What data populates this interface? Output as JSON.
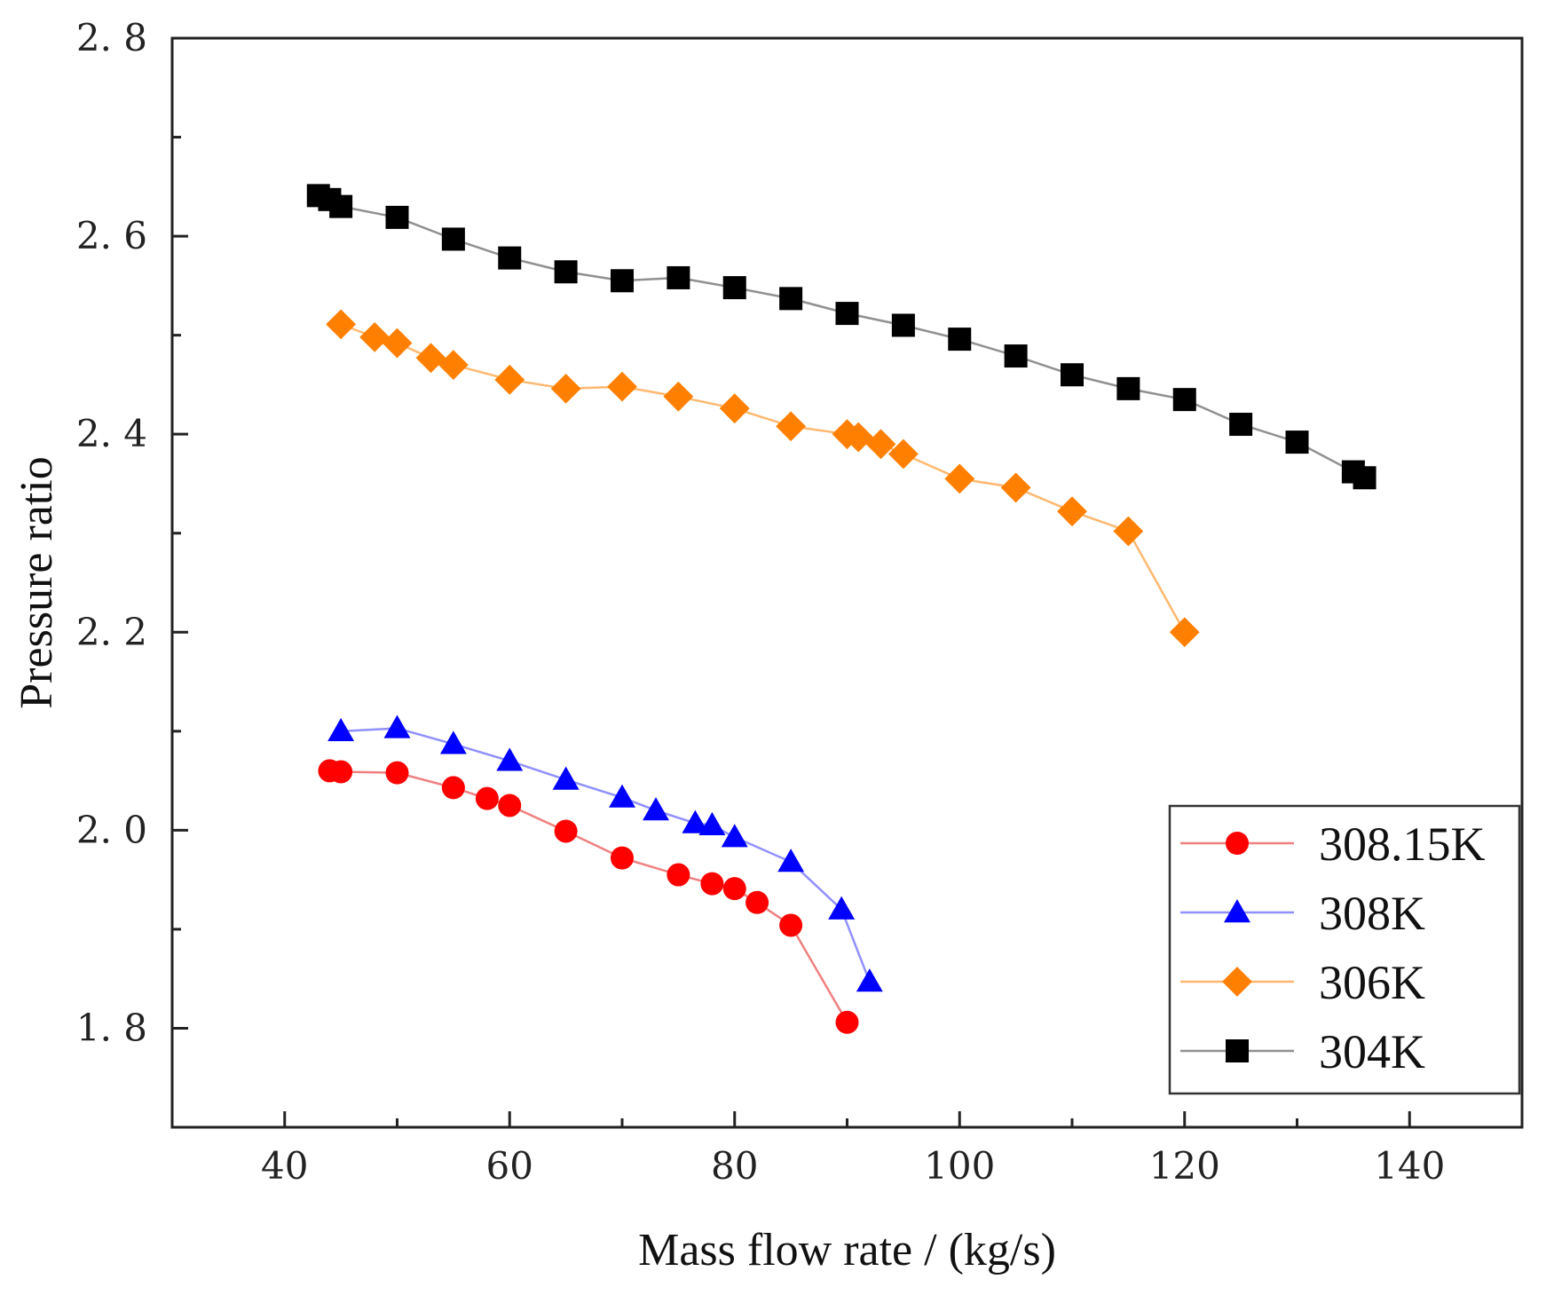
{
  "chart_data": {
    "type": "line",
    "title": "",
    "xlabel": "Mass flow rate / (kg/s)",
    "ylabel": "Pressure ratio",
    "xlim": [
      30,
      150
    ],
    "ylim": [
      1.7,
      2.8
    ],
    "x_ticks": [
      40,
      60,
      80,
      100,
      120,
      140
    ],
    "x_tick_labels": [
      "40",
      "60",
      "80",
      "100",
      "120",
      "140"
    ],
    "y_ticks": [
      1.8,
      2.0,
      2.2,
      2.4,
      2.6,
      2.8
    ],
    "y_tick_labels": [
      "1. 8",
      "2. 0",
      "2. 2",
      "2. 4",
      "2. 6",
      "2. 8"
    ],
    "grid": false,
    "legend_position": "bottom-right",
    "series": [
      {
        "name": "308.15K",
        "color": "#ff0000",
        "line_color": "#f08080",
        "marker": "circle",
        "x": [
          44,
          45,
          50,
          55,
          58,
          60,
          65,
          70,
          75,
          78,
          80,
          82,
          85,
          90
        ],
        "y": [
          2.06,
          2.059,
          2.058,
          2.043,
          2.032,
          2.025,
          1.999,
          1.972,
          1.955,
          1.946,
          1.941,
          1.927,
          1.904,
          1.806
        ]
      },
      {
        "name": "308K",
        "color": "#0000ff",
        "line_color": "#9090ff",
        "marker": "triangle",
        "x": [
          45,
          50,
          55,
          60,
          65,
          70,
          73,
          76.5,
          78,
          80,
          85,
          89.5,
          92
        ],
        "y": [
          2.1,
          2.103,
          2.087,
          2.07,
          2.051,
          2.033,
          2.02,
          2.007,
          2.005,
          1.993,
          1.968,
          1.92,
          1.847
        ]
      },
      {
        "name": "306K",
        "color": "#ff8000",
        "line_color": "#ffb870",
        "marker": "diamond",
        "x": [
          45,
          48,
          50,
          53,
          55,
          60,
          65,
          70,
          75,
          80,
          85,
          90,
          91,
          93,
          95,
          100,
          105,
          110,
          115,
          120
        ],
        "y": [
          2.511,
          2.498,
          2.492,
          2.477,
          2.47,
          2.455,
          2.446,
          2.448,
          2.438,
          2.426,
          2.408,
          2.4,
          2.397,
          2.39,
          2.38,
          2.355,
          2.346,
          2.322,
          2.302,
          2.2
        ]
      },
      {
        "name": "304K",
        "color": "#000000",
        "line_color": "#909090",
        "marker": "square",
        "x": [
          43,
          44,
          45,
          50,
          55,
          60,
          65,
          70,
          75,
          80,
          85,
          90,
          95,
          100,
          105,
          110,
          115,
          120,
          125,
          130,
          135,
          136
        ],
        "y": [
          2.641,
          2.637,
          2.63,
          2.619,
          2.597,
          2.578,
          2.564,
          2.555,
          2.558,
          2.548,
          2.537,
          2.522,
          2.51,
          2.496,
          2.479,
          2.46,
          2.446,
          2.435,
          2.41,
          2.392,
          2.362,
          2.356
        ]
      }
    ]
  }
}
